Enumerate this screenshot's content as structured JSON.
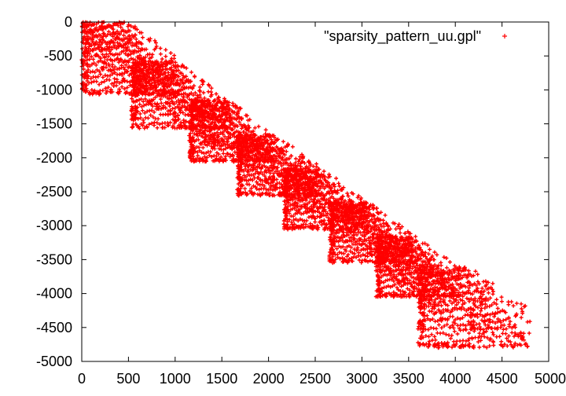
{
  "chart_data": {
    "type": "scatter",
    "title": "",
    "xlabel": "",
    "ylabel": "",
    "xlim": [
      0,
      5000
    ],
    "ylim": [
      -5000,
      0
    ],
    "grid": false,
    "legend_position": "top-right",
    "x_ticks": [
      0,
      500,
      1000,
      1500,
      2000,
      2500,
      3000,
      3500,
      4000,
      4500,
      5000
    ],
    "y_ticks": [
      0,
      -500,
      -1000,
      -1500,
      -2000,
      -2500,
      -3000,
      -3500,
      -4000,
      -4500,
      -5000
    ],
    "series": [
      {
        "name": "\"sparsity_pattern_uu.gpl\"",
        "color": "#ff0000",
        "marker": "plus",
        "blocks": [
          {
            "x": [
              0,
              1070
            ],
            "y": [
              -1070,
              0
            ]
          },
          {
            "x": [
              530,
              1570
            ],
            "y": [
              -1570,
              -580
            ]
          },
          {
            "x": [
              1150,
              2060
            ],
            "y": [
              -2060,
              -1150
            ]
          },
          {
            "x": [
              1660,
              2560
            ],
            "y": [
              -2560,
              -1660
            ]
          },
          {
            "x": [
              2160,
              3060
            ],
            "y": [
              -3060,
              -2160
            ]
          },
          {
            "x": [
              2650,
              3550
            ],
            "y": [
              -3550,
              -2650
            ]
          },
          {
            "x": [
              3150,
              4050
            ],
            "y": [
              -4050,
              -3150
            ]
          },
          {
            "x": [
              3600,
              4800
            ],
            "y": [
              -4800,
              -3600
            ]
          }
        ]
      }
    ]
  }
}
